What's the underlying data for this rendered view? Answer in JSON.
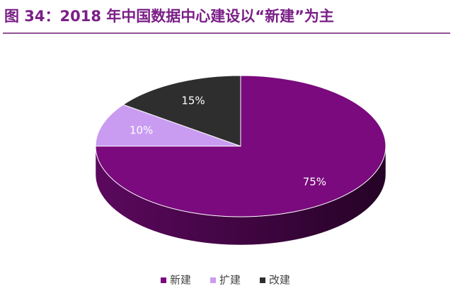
{
  "chart_data": {
    "type": "pie3d",
    "title": "图 34：2018 年中国数据中心建设以“新建”为主",
    "categories": [
      "新建",
      "扩建",
      "改建"
    ],
    "values": [
      75,
      10,
      15
    ],
    "value_labels": [
      "75%",
      "10%",
      "15%"
    ],
    "colors": [
      "#7a0a7d",
      "#c99cf2",
      "#2e2e2e"
    ],
    "legend": "bottom"
  }
}
